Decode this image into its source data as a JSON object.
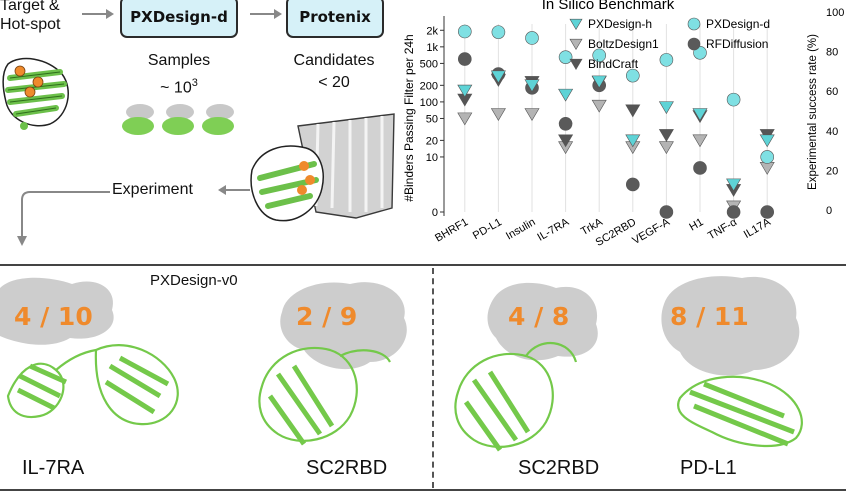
{
  "workflow": {
    "target_label_line1": "Target &",
    "target_label_line2": "Hot-spot",
    "step1": "PXDesign-d",
    "step2": "Protenix",
    "samples_label": "Samples",
    "samples_value": "~ 10",
    "samples_exp": "3",
    "candidates_label": "Candidates",
    "candidates_value": "< 20",
    "experiment_label": "Experiment"
  },
  "chart_data": {
    "type": "scatter",
    "title": "In Silico Benchmark",
    "ylabel": "#Binders Passing Filter per 24h",
    "y2label": "Experimental success rate (%)",
    "yscale": "symlog",
    "ylim": [
      0,
      2600
    ],
    "yticks": [
      "2k",
      "1k",
      "500",
      "200",
      "100",
      "50",
      "20",
      "10",
      "0"
    ],
    "y2ticks": [
      "100",
      "80",
      "60",
      "40",
      "20",
      "0"
    ],
    "categories": [
      "BHRF1",
      "PD-L1",
      "Insulin",
      "IL-7RA",
      "TrkA",
      "SC2RBD",
      "VEGF-A",
      "H1",
      "TNF-α",
      "IL17A"
    ],
    "series": [
      {
        "name": "PXDesign-h",
        "marker": "triangle-down",
        "color": "#5ed3d6",
        "values": [
          160,
          290,
          200,
          135,
          235,
          20,
          80,
          60,
          5,
          20
        ]
      },
      {
        "name": "PXDesign-d",
        "marker": "circle",
        "color": "#7fe0e3",
        "values": [
          1900,
          1850,
          1450,
          650,
          700,
          300,
          580,
          780,
          110,
          10
        ]
      },
      {
        "name": "BoltzDesign1",
        "marker": "triangle-down",
        "color": "#b4b4b4",
        "values": [
          50,
          60,
          60,
          15,
          85,
          15,
          15,
          20,
          1,
          8
        ]
      },
      {
        "name": "RFDiffusion",
        "marker": "circle",
        "color": "#5a5a5a",
        "values": [
          600,
          320,
          180,
          40,
          200,
          5,
          0,
          8,
          0,
          0
        ]
      },
      {
        "name": "BindCraft",
        "marker": "triangle-down",
        "color": "#555555",
        "values": [
          110,
          250,
          230,
          20,
          230,
          70,
          25,
          55,
          4,
          25
        ]
      }
    ]
  },
  "results": {
    "section_label": "PXDesign-v0",
    "panels": [
      {
        "score": "4 / 10",
        "name": "IL-7RA"
      },
      {
        "score": "2 / 9",
        "name": "SC2RBD"
      },
      {
        "score": "4 / 8",
        "name": "SC2RBD"
      },
      {
        "score": "8 / 11",
        "name": "PD-L1"
      }
    ]
  }
}
